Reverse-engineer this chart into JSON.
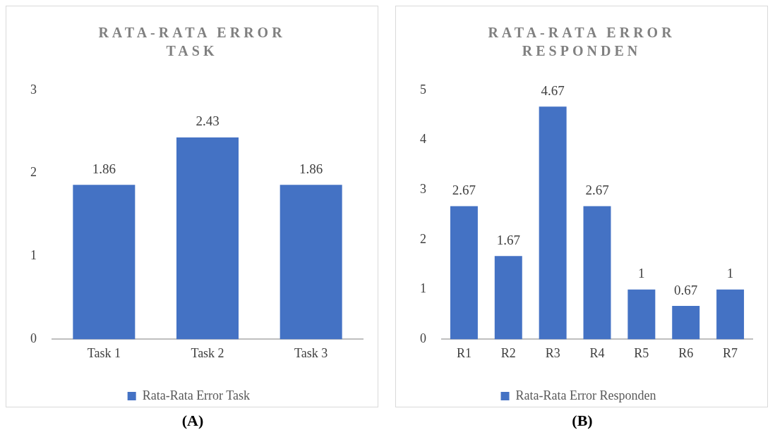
{
  "chart_data": [
    {
      "type": "bar",
      "title": "RATA-RATA ERROR TASK",
      "categories": [
        "Task 1",
        "Task 2",
        "Task 3"
      ],
      "series": [
        {
          "name": "Rata-Rata Error Task",
          "color": "#4472c4",
          "values": [
            1.86,
            2.43,
            1.86
          ]
        }
      ],
      "ylim": [
        0,
        3
      ],
      "yticks": [
        0,
        1,
        2,
        3
      ],
      "grid": false,
      "legend": "bottom",
      "data_labels": true,
      "annotations": [
        "(A)"
      ]
    },
    {
      "type": "bar",
      "title": "RATA-RATA ERROR RESPONDEN",
      "categories": [
        "R1",
        "R2",
        "R3",
        "R4",
        "R5",
        "R6",
        "R7"
      ],
      "series": [
        {
          "name": "Rata-Rata Error Responden",
          "color": "#4472c4",
          "values": [
            2.67,
            1.67,
            4.67,
            2.67,
            1,
            0.67,
            1
          ]
        }
      ],
      "ylim": [
        0,
        5
      ],
      "yticks": [
        0,
        1,
        2,
        3,
        4,
        5
      ],
      "grid": false,
      "legend": "bottom",
      "data_labels": true,
      "annotations": [
        "(B)"
      ]
    }
  ]
}
